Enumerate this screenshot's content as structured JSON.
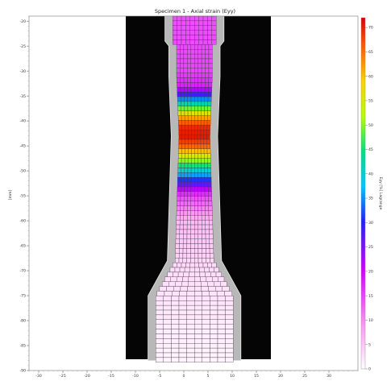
{
  "chart_data": {
    "type": "heatmap",
    "title": "Specimen 1 - Axial strain (Eyy)",
    "ylabel": "[mm]",
    "colorbar_label": "Eyy [%] Lagrange",
    "x_ticks": [
      "-30",
      "-25",
      "-20",
      "-15",
      "-10",
      "-5",
      "0",
      "5",
      "10",
      "15",
      "20",
      "25",
      "30"
    ],
    "y_ticks": [
      "-20",
      "-25",
      "-30",
      "-35",
      "-40",
      "-45",
      "-50",
      "-55",
      "-60",
      "-65",
      "-70",
      "-75",
      "-80",
      "-85",
      "-90"
    ],
    "colorbar_ticks": [
      "70",
      "65",
      "60",
      "55",
      "50",
      "45",
      "40",
      "35",
      "30",
      "25",
      "20",
      "15",
      "10",
      "5",
      "0"
    ],
    "xlim": [
      -32,
      36
    ],
    "ylim": [
      -90,
      -19
    ],
    "colorbar_range": [
      0,
      72
    ],
    "grid_x_range": [
      -3,
      7
    ],
    "grid_y_range": [
      -88,
      -19
    ],
    "neck_center_y": -43,
    "neck_half_width_mm": 3,
    "shoulder_half_width_mm": 9,
    "strain_profile": {
      "y": [
        -19,
        -30,
        -33,
        -35,
        -37,
        -39,
        -41,
        -43,
        -45,
        -47,
        -49,
        -51,
        -53,
        -55,
        -60,
        -70,
        -88
      ],
      "value": [
        14,
        15,
        18,
        30,
        45,
        60,
        69,
        71,
        66,
        55,
        45,
        35,
        25,
        15,
        6,
        3,
        1
      ]
    }
  }
}
